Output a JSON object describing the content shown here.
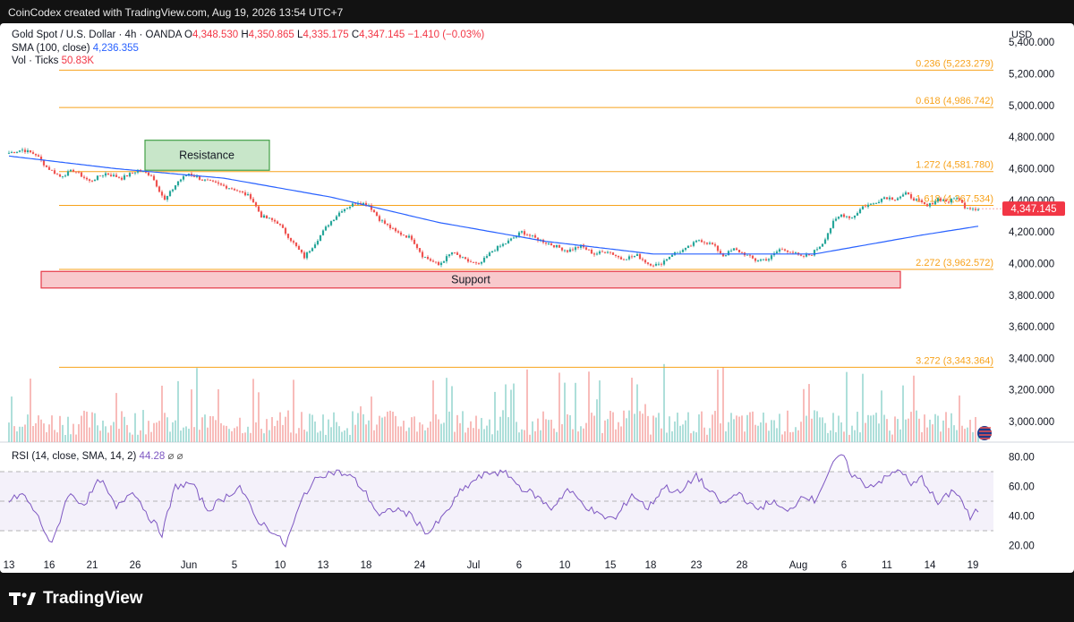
{
  "header": {
    "attribution": "CoinCodex created with TradingView.com, Aug 19, 2026 13:54 UTC+7"
  },
  "legend": {
    "symbol": "Gold Spot / U.S. Dollar · 4h · OANDA",
    "open_k": "O",
    "open_v": "4,348.530",
    "high_k": "H",
    "high_v": "4,350.865",
    "low_k": "L",
    "low_v": "4,335.175",
    "close_k": "C",
    "close_v": "4,347.145",
    "change": "−1.410 (−0.03%)",
    "sma_label": "SMA (100, close)",
    "sma_value": "4,236.355",
    "vol_label": "Vol · Ticks",
    "vol_value": "50.83K",
    "rsi_label": "RSI (14, close, SMA, 14, 2)",
    "rsi_value": "44.28",
    "rsi_icons": "⌀ ⌀"
  },
  "footer": {
    "brand": "TradingView"
  },
  "colors": {
    "up": "#26a69a",
    "down": "#ef5350",
    "sma": "#2962ff",
    "fib": "#f7a21b",
    "rsi": "#7e57c2",
    "support_fill": "#f8c9cc",
    "support_border": "#e53946",
    "resistance_fill": "#c8e6c9",
    "resistance_border": "#43a047"
  },
  "chart_data": {
    "type": "candlestick",
    "currency_label": "USD",
    "price_axis_labels": [
      "5,400.000",
      "5,200.000",
      "5,000.000",
      "4,800.000",
      "4,600.000",
      "4,400.000",
      "4,200.000",
      "4,000.000",
      "3,800.000",
      "3,600.000",
      "3,400.000",
      "3,200.000",
      "3,000.000"
    ],
    "price_axis_values": [
      5400,
      5200,
      5000,
      4800,
      4600,
      4400,
      4200,
      4000,
      3800,
      3600,
      3400,
      3200,
      3000
    ],
    "price_range": [
      2870,
      5520
    ],
    "last_price_label": "4,347.145",
    "last_price": 4347.145,
    "fib_levels": [
      {
        "label": "0.236 (5,223.279)",
        "price": 5223.279
      },
      {
        "label": "0.618 (4,986.742)",
        "price": 4986.742
      },
      {
        "label": "1.272 (4,581.780)",
        "price": 4581.78
      },
      {
        "label": "1.618 (4,367.534)",
        "price": 4367.534
      },
      {
        "label": "2.272 (3,962.572)",
        "price": 3962.572
      },
      {
        "label": "3.272 (3,343.364)",
        "price": 3343.364
      }
    ],
    "zones": [
      {
        "label": "Resistance",
        "low": 4590,
        "high": 4780
      },
      {
        "label": "Support",
        "low": 3845,
        "high": 3950
      }
    ],
    "x_axis_labels": [
      "13",
      "16",
      "21",
      "26",
      "Jun",
      "5",
      "10",
      "13",
      "18",
      "24",
      "Jul",
      "6",
      "10",
      "15",
      "18",
      "23",
      "28",
      "Aug",
      "6",
      "11",
      "14",
      "19"
    ],
    "x_axis_bar_index": [
      0,
      15,
      31,
      47,
      67,
      84,
      101,
      117,
      133,
      153,
      173,
      190,
      207,
      224,
      239,
      256,
      273,
      294,
      311,
      327,
      343,
      359
    ],
    "close_path": [
      [
        0,
        4700
      ],
      [
        5,
        4720
      ],
      [
        10,
        4690
      ],
      [
        14,
        4610
      ],
      [
        19,
        4550
      ],
      [
        24,
        4590
      ],
      [
        30,
        4520
      ],
      [
        36,
        4570
      ],
      [
        42,
        4540
      ],
      [
        48,
        4590
      ],
      [
        53,
        4560
      ],
      [
        58,
        4400
      ],
      [
        63,
        4520
      ],
      [
        67,
        4570
      ],
      [
        72,
        4530
      ],
      [
        78,
        4500
      ],
      [
        84,
        4470
      ],
      [
        90,
        4420
      ],
      [
        94,
        4300
      ],
      [
        100,
        4260
      ],
      [
        105,
        4150
      ],
      [
        110,
        4040
      ],
      [
        114,
        4130
      ],
      [
        119,
        4250
      ],
      [
        124,
        4340
      ],
      [
        130,
        4390
      ],
      [
        134,
        4370
      ],
      [
        138,
        4280
      ],
      [
        144,
        4200
      ],
      [
        150,
        4160
      ],
      [
        154,
        4050
      ],
      [
        160,
        3990
      ],
      [
        165,
        4070
      ],
      [
        170,
        4020
      ],
      [
        175,
        3990
      ],
      [
        180,
        4080
      ],
      [
        186,
        4140
      ],
      [
        191,
        4200
      ],
      [
        196,
        4160
      ],
      [
        202,
        4120
      ],
      [
        208,
        4080
      ],
      [
        213,
        4110
      ],
      [
        218,
        4060
      ],
      [
        223,
        4080
      ],
      [
        228,
        4030
      ],
      [
        234,
        4050
      ],
      [
        238,
        4000
      ],
      [
        242,
        3990
      ],
      [
        247,
        4060
      ],
      [
        252,
        4090
      ],
      [
        257,
        4150
      ],
      [
        262,
        4120
      ],
      [
        266,
        4050
      ],
      [
        270,
        4090
      ],
      [
        274,
        4060
      ],
      [
        278,
        4020
      ],
      [
        283,
        4030
      ],
      [
        287,
        4090
      ],
      [
        291,
        4080
      ],
      [
        295,
        4040
      ],
      [
        299,
        4060
      ],
      [
        303,
        4130
      ],
      [
        307,
        4260
      ],
      [
        310,
        4310
      ],
      [
        314,
        4290
      ],
      [
        318,
        4360
      ],
      [
        322,
        4380
      ],
      [
        326,
        4420
      ],
      [
        330,
        4410
      ],
      [
        334,
        4440
      ],
      [
        338,
        4400
      ],
      [
        342,
        4360
      ],
      [
        346,
        4410
      ],
      [
        350,
        4390
      ],
      [
        353,
        4420
      ],
      [
        356,
        4360
      ],
      [
        359,
        4350
      ],
      [
        361,
        4347
      ]
    ],
    "sma_path": [
      [
        0,
        4680
      ],
      [
        40,
        4600
      ],
      [
        80,
        4540
      ],
      [
        120,
        4420
      ],
      [
        160,
        4260
      ],
      [
        200,
        4140
      ],
      [
        240,
        4060
      ],
      [
        280,
        4060
      ],
      [
        300,
        4060
      ],
      [
        320,
        4120
      ],
      [
        340,
        4180
      ],
      [
        361,
        4236
      ]
    ],
    "volume_axis_max": 32000,
    "rsi_axis_labels": [
      "80.00",
      "60.00",
      "40.00",
      "20.00"
    ],
    "rsi_axis_values": [
      80,
      60,
      40,
      20
    ],
    "rsi_range": [
      10,
      90
    ],
    "rsi_bands": [
      70,
      50,
      30
    ],
    "rsi_path": [
      [
        0,
        50
      ],
      [
        5,
        55
      ],
      [
        10,
        42
      ],
      [
        16,
        20
      ],
      [
        22,
        55
      ],
      [
        28,
        48
      ],
      [
        34,
        65
      ],
      [
        40,
        45
      ],
      [
        46,
        58
      ],
      [
        52,
        40
      ],
      [
        57,
        28
      ],
      [
        62,
        60
      ],
      [
        68,
        62
      ],
      [
        74,
        44
      ],
      [
        80,
        52
      ],
      [
        86,
        60
      ],
      [
        92,
        38
      ],
      [
        98,
        30
      ],
      [
        103,
        20
      ],
      [
        106,
        35
      ],
      [
        110,
        55
      ],
      [
        116,
        68
      ],
      [
        122,
        70
      ],
      [
        128,
        66
      ],
      [
        133,
        55
      ],
      [
        138,
        40
      ],
      [
        144,
        45
      ],
      [
        150,
        40
      ],
      [
        156,
        28
      ],
      [
        162,
        40
      ],
      [
        168,
        56
      ],
      [
        174,
        65
      ],
      [
        180,
        70
      ],
      [
        186,
        68
      ],
      [
        190,
        60
      ],
      [
        196,
        54
      ],
      [
        202,
        45
      ],
      [
        208,
        58
      ],
      [
        214,
        48
      ],
      [
        220,
        40
      ],
      [
        226,
        38
      ],
      [
        232,
        55
      ],
      [
        238,
        45
      ],
      [
        244,
        60
      ],
      [
        250,
        55
      ],
      [
        256,
        68
      ],
      [
        260,
        58
      ],
      [
        266,
        48
      ],
      [
        272,
        56
      ],
      [
        278,
        44
      ],
      [
        284,
        50
      ],
      [
        290,
        42
      ],
      [
        296,
        55
      ],
      [
        300,
        50
      ],
      [
        306,
        72
      ],
      [
        310,
        82
      ],
      [
        314,
        68
      ],
      [
        320,
        60
      ],
      [
        326,
        65
      ],
      [
        332,
        72
      ],
      [
        336,
        60
      ],
      [
        340,
        66
      ],
      [
        346,
        48
      ],
      [
        352,
        58
      ],
      [
        355,
        50
      ],
      [
        358,
        38
      ],
      [
        361,
        44.28
      ]
    ]
  }
}
